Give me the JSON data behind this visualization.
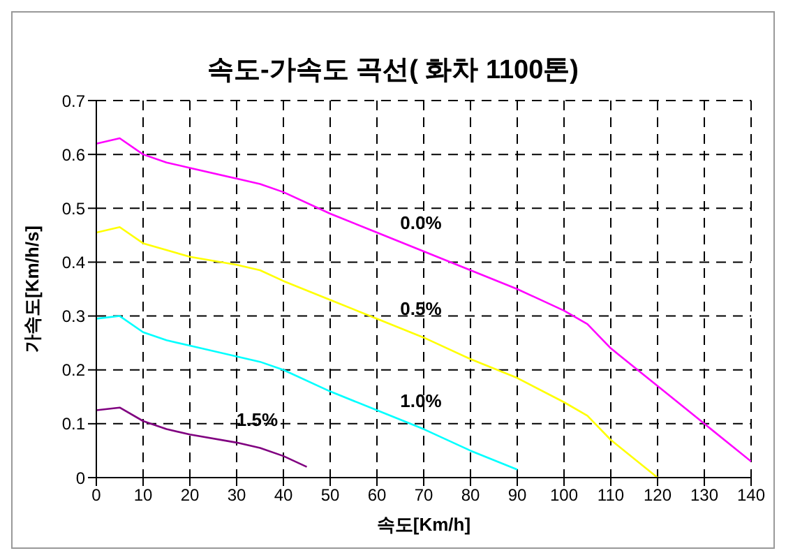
{
  "chart_data": {
    "type": "line",
    "title": "속도-가속도 곡선( 화차 1100톤)",
    "xlabel": "속도[Km/h]",
    "ylabel": "가속도[Km/h/s]",
    "xlim": [
      0,
      140
    ],
    "xticks": [
      0,
      10,
      20,
      30,
      40,
      50,
      60,
      70,
      80,
      90,
      100,
      110,
      120,
      130,
      140
    ],
    "ylim": [
      0,
      0.7
    ],
    "yticks": [
      0,
      0.1,
      0.2,
      0.3,
      0.4,
      0.5,
      0.6,
      0.7
    ],
    "grid": true,
    "legend": false,
    "marker": "none",
    "line_style": "solid",
    "series": [
      {
        "name": "0.0%",
        "color": "#ff00ff",
        "x": [
          0,
          5,
          10,
          15,
          20,
          30,
          35,
          40,
          50,
          60,
          70,
          80,
          90,
          100,
          105,
          110,
          120,
          130,
          140
        ],
        "values": [
          0.62,
          0.63,
          0.6,
          0.585,
          0.575,
          0.555,
          0.545,
          0.53,
          0.49,
          0.455,
          0.42,
          0.385,
          0.35,
          0.31,
          0.285,
          0.24,
          0.17,
          0.1,
          0.03
        ]
      },
      {
        "name": "0.5%",
        "color": "#ffff00",
        "x": [
          0,
          5,
          10,
          20,
          30,
          35,
          40,
          50,
          60,
          70,
          80,
          90,
          100,
          105,
          110,
          120
        ],
        "values": [
          0.455,
          0.465,
          0.435,
          0.41,
          0.395,
          0.385,
          0.365,
          0.33,
          0.295,
          0.26,
          0.22,
          0.185,
          0.14,
          0.115,
          0.07,
          0
        ]
      },
      {
        "name": "1.0%",
        "color": "#00ffff",
        "x": [
          0,
          5,
          10,
          15,
          20,
          30,
          35,
          40,
          50,
          60,
          70,
          80,
          90
        ],
        "values": [
          0.295,
          0.3,
          0.27,
          0.255,
          0.245,
          0.225,
          0.215,
          0.2,
          0.16,
          0.125,
          0.09,
          0.05,
          0.015
        ]
      },
      {
        "name": "1.5%",
        "color": "#800080",
        "x": [
          0,
          5,
          10,
          15,
          20,
          30,
          35,
          40,
          45
        ],
        "values": [
          0.125,
          0.13,
          0.105,
          0.09,
          0.08,
          0.065,
          0.055,
          0.04,
          0.02
        ]
      }
    ]
  }
}
